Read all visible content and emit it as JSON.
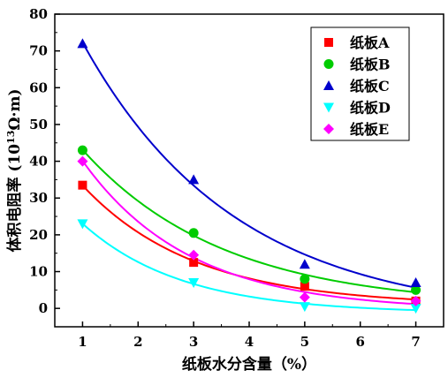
{
  "chart_data": {
    "type": "scatter",
    "title": "",
    "xlabel": "纸板水分含量（%）",
    "ylabel": {
      "prefix": "体积电阻率 (10",
      "sup": "13",
      "suffix": "Ω·m)"
    },
    "xlim": [
      0.5,
      7.5
    ],
    "ylim": [
      -5,
      80
    ],
    "x_ticks": [
      1,
      2,
      3,
      4,
      5,
      6,
      7
    ],
    "y_ticks": [
      0,
      10,
      20,
      30,
      40,
      50,
      60,
      70,
      80
    ],
    "grid": false,
    "legend_position": "top-right",
    "x": [
      1,
      3,
      5,
      7
    ],
    "series": [
      {
        "name": "纸板A",
        "values": [
          33.5,
          12.5,
          6,
          2
        ],
        "color": "#ff0000",
        "marker": "square"
      },
      {
        "name": "纸板B",
        "values": [
          43,
          20.5,
          8,
          5
        ],
        "color": "#00cc00",
        "marker": "circle"
      },
      {
        "name": "纸板C",
        "values": [
          72,
          35,
          12,
          7
        ],
        "color": "#0000cc",
        "marker": "triangle-up"
      },
      {
        "name": "纸板D",
        "values": [
          23,
          7,
          0.5,
          0
        ],
        "color": "#00ffff",
        "marker": "triangle-down"
      },
      {
        "name": "纸板E",
        "values": [
          40,
          14.5,
          3,
          2
        ],
        "color": "#ff00ff",
        "marker": "diamond"
      }
    ]
  }
}
